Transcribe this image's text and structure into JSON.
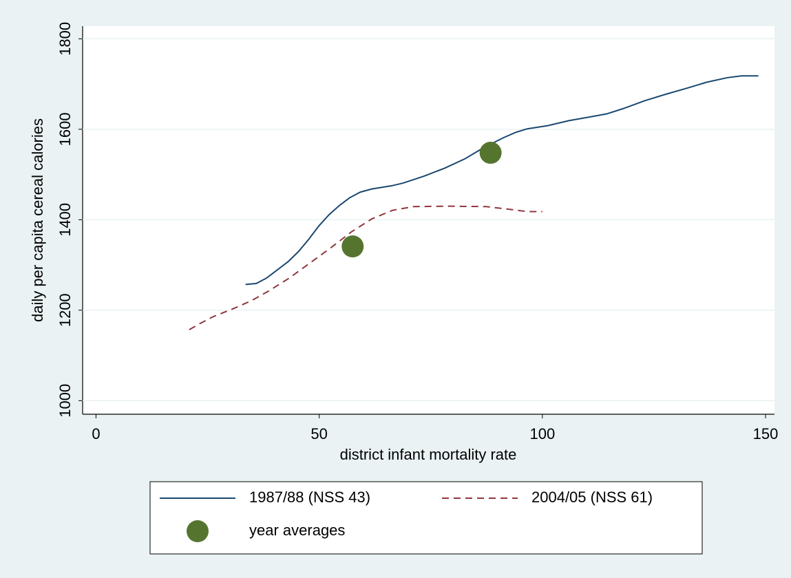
{
  "chart_data": {
    "type": "line",
    "xlabel": "district infant mortality rate",
    "ylabel": "daily per capita cereal calories",
    "xlim": [
      -3,
      152
    ],
    "ylim": [
      970,
      1828
    ],
    "xticks": [
      0,
      50,
      100,
      150
    ],
    "yticks": [
      1000,
      1200,
      1400,
      1600,
      1800
    ],
    "grid": true,
    "legend": "bottom",
    "series": [
      {
        "name": "1987/88 (NSS 43)",
        "color": "#1a476f",
        "style": "solid",
        "type": "line",
        "x": [
          33.5,
          35.9,
          38.2,
          43,
          45.3,
          47.6,
          49.9,
          52.2,
          54.6,
          56.9,
          59.2,
          61.8,
          66.2,
          68.8,
          73.4,
          78.1,
          82.7,
          86.6,
          91.2,
          94,
          96.6,
          101.2,
          105.9,
          110.5,
          114.4,
          118.2,
          122.9,
          127.5,
          132.1,
          136.8,
          141.4,
          144.6,
          148.4
        ],
        "values": [
          1257,
          1259,
          1271,
          1307,
          1329,
          1356,
          1386,
          1411,
          1432,
          1449,
          1461,
          1468,
          1475,
          1481,
          1496,
          1514,
          1535,
          1558,
          1581,
          1593,
          1601,
          1608,
          1619,
          1627,
          1634,
          1646,
          1663,
          1677,
          1690,
          1704,
          1714,
          1718,
          1718
        ]
      },
      {
        "name": "2004/05 (NSS 61)",
        "color": "#90353b",
        "style": "dashed",
        "type": "line",
        "x": [
          20.9,
          23.2,
          26.3,
          30.9,
          34.8,
          38.6,
          43.3,
          47.9,
          52.6,
          57.2,
          61.8,
          66.5,
          71.1,
          78.8,
          87.4,
          92.7,
          96.6,
          100
        ],
        "values": [
          1157,
          1170,
          1186,
          1204,
          1221,
          1242,
          1271,
          1304,
          1338,
          1373,
          1402,
          1421,
          1429,
          1430,
          1429,
          1423,
          1418,
          1418
        ]
      },
      {
        "name": "year averages",
        "color": "#55752f",
        "style": "marker",
        "type": "scatter",
        "x": [
          57.5,
          88.4
        ],
        "values": [
          1341,
          1548
        ]
      }
    ]
  }
}
